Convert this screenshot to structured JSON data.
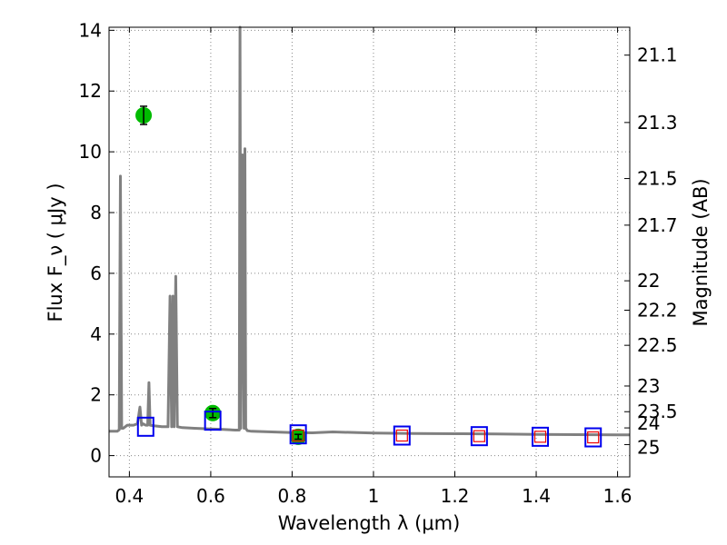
{
  "chart_data": {
    "type": "scatter",
    "xlabel": "Wavelength  λ (μm)",
    "ylabel": "Flux  F_ν  ( μJy )",
    "ylabel_right": "Magnitude (AB)",
    "xlim": [
      0.35,
      1.63
    ],
    "ylim": [
      -0.7,
      14.1
    ],
    "grid": true,
    "x_ticks": [
      0.4,
      0.6,
      0.8,
      1.0,
      1.2,
      1.4,
      1.6
    ],
    "x_tick_labels": [
      "0.4",
      "0.6",
      "0.8",
      "1",
      "1.2",
      "1.4",
      "1.6"
    ],
    "y_ticks": [
      0,
      2,
      4,
      6,
      8,
      10,
      12,
      14
    ],
    "y_tick_labels": [
      "0",
      "2",
      "4",
      "6",
      "8",
      "10",
      "12",
      "14"
    ],
    "mag_ticks": [
      "21.1",
      "21.3",
      "21.5",
      "21.7",
      "22",
      "22.2",
      "22.5",
      "23",
      "23.5",
      "24",
      "25"
    ],
    "colors": {
      "spectrum": "#808080",
      "observed": "#00bb00",
      "model_blue": "#0000ee",
      "model_red": "#ee0000",
      "grid": "#888888"
    },
    "series": [
      {
        "kind": "line",
        "x": [
          0.35,
          0.37,
          0.375,
          0.378,
          0.381,
          0.385,
          0.395,
          0.41,
          0.42,
          0.426,
          0.43,
          0.433,
          0.44,
          0.445,
          0.448,
          0.451,
          0.46,
          0.48,
          0.495,
          0.5,
          0.504,
          0.507,
          0.51,
          0.514,
          0.518,
          0.53,
          0.56,
          0.6,
          0.63,
          0.66,
          0.67,
          0.672,
          0.674,
          0.678,
          0.682,
          0.684,
          0.686,
          0.69,
          0.7,
          0.75,
          0.8,
          0.85,
          0.9,
          1.0,
          1.1,
          1.2,
          1.3,
          1.4,
          1.5,
          1.6,
          1.63
        ],
        "y": [
          0.8,
          0.8,
          0.85,
          9.2,
          0.9,
          0.9,
          1.0,
          1.0,
          1.05,
          1.6,
          1.0,
          1.05,
          1.0,
          1.0,
          2.4,
          1.0,
          0.98,
          0.95,
          0.95,
          5.25,
          0.95,
          5.25,
          0.95,
          5.9,
          0.95,
          0.92,
          0.9,
          0.88,
          0.86,
          0.84,
          0.84,
          14.1,
          0.9,
          9.9,
          0.9,
          10.1,
          0.9,
          0.82,
          0.8,
          0.78,
          0.76,
          0.75,
          0.78,
          0.74,
          0.73,
          0.72,
          0.71,
          0.7,
          0.69,
          0.68,
          0.68
        ]
      },
      {
        "kind": "errorbar",
        "x": [
          0.435,
          0.605,
          0.815
        ],
        "y": [
          11.2,
          1.4,
          0.62
        ],
        "yerr": [
          0.3,
          0.15,
          0.08
        ]
      },
      {
        "kind": "model-blue",
        "x": [
          0.44,
          0.605,
          0.815,
          1.07,
          1.26,
          1.41,
          1.54
        ],
        "y": [
          0.95,
          1.15,
          0.7,
          0.66,
          0.64,
          0.62,
          0.6
        ]
      },
      {
        "kind": "model-red",
        "x": [
          0.815,
          1.07,
          1.26,
          1.41,
          1.54
        ],
        "y": [
          0.66,
          0.66,
          0.64,
          0.62,
          0.6
        ]
      }
    ]
  }
}
